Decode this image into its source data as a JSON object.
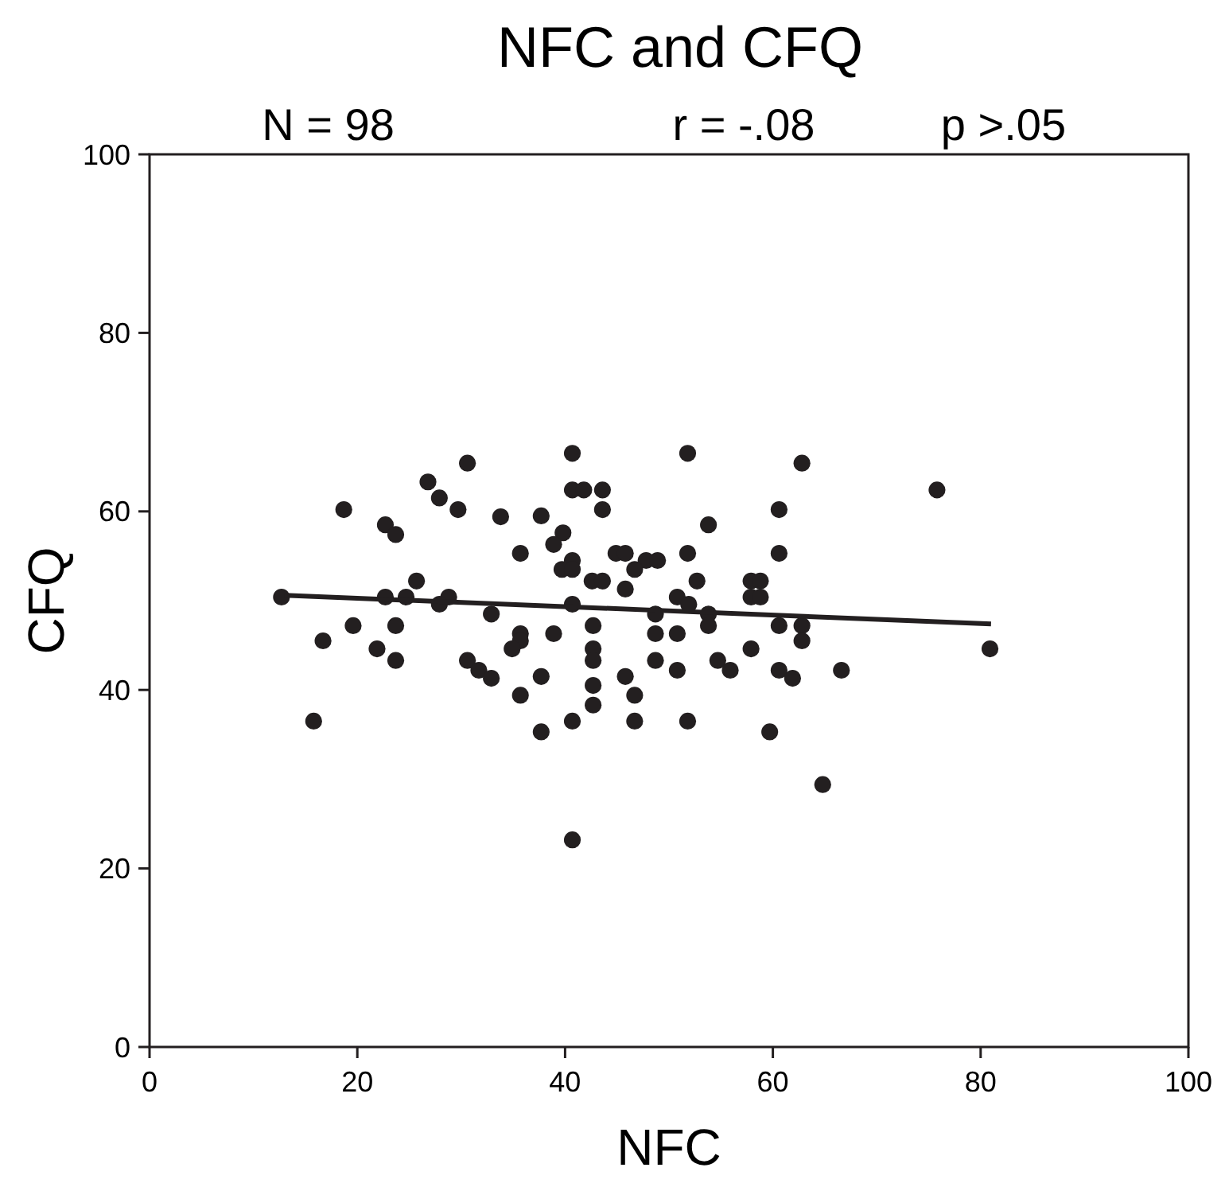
{
  "chart_data": {
    "type": "scatter",
    "title": "NFC and CFQ",
    "xlabel": "NFC",
    "ylabel": "CFQ",
    "annotations": [
      "N = 98",
      "r = -.08",
      "p >.05"
    ],
    "xlim": [
      0,
      100
    ],
    "xticks": [
      0,
      20,
      40,
      60,
      80,
      100
    ],
    "ylim": [
      0,
      100
    ],
    "yticks": [
      0,
      20,
      40,
      60,
      80,
      100
    ],
    "grid": false,
    "marker": "circle",
    "series": [
      {
        "color": "#231f20",
        "x": [
          30.6,
          26.8,
          27.9,
          18.7,
          29.7,
          33.8,
          22.7,
          23.7,
          25.7,
          12.7,
          22.7,
          24.7,
          28.8,
          27.9,
          32.9,
          19.6,
          23.7,
          16.7,
          21.9,
          23.7,
          30.6,
          31.7,
          32.9,
          15.8,
          40.7,
          51.8,
          40.7,
          41.8,
          43.6,
          43.6,
          37.7,
          39.8,
          38.9,
          35.7,
          44.9,
          45.8,
          51.8,
          53.8,
          40.7,
          39.7,
          40.7,
          47.8,
          48.9,
          46.7,
          42.6,
          43.6,
          45.8,
          52.7,
          50.8,
          51.9,
          57.9,
          58.8,
          57.9,
          58.8,
          40.7,
          48.7,
          53.8,
          53.8,
          42.7,
          35.7,
          35.7,
          34.9,
          38.9,
          48.7,
          50.8,
          42.7,
          42.7,
          48.7,
          50.8,
          54.7,
          55.9,
          57.9,
          37.7,
          45.8,
          35.7,
          42.7,
          42.7,
          46.7,
          40.7,
          46.7,
          51.8,
          37.7,
          59.7,
          40.7,
          62.8,
          75.8,
          60.6,
          60.6,
          60.6,
          62.8,
          62.8,
          80.9,
          60.6,
          61.9,
          66.6,
          64.8
        ],
        "values": [
          65.4,
          63.3,
          61.5,
          60.2,
          60.2,
          59.4,
          58.5,
          57.4,
          52.2,
          50.4,
          50.4,
          50.4,
          50.4,
          49.6,
          48.5,
          47.2,
          47.2,
          45.5,
          44.6,
          43.3,
          43.3,
          42.2,
          41.3,
          36.5,
          66.5,
          66.5,
          62.4,
          62.4,
          62.4,
          60.2,
          59.5,
          57.6,
          56.3,
          55.3,
          55.3,
          55.3,
          55.3,
          58.5,
          54.5,
          53.5,
          53.5,
          54.5,
          54.5,
          53.5,
          52.2,
          52.2,
          51.3,
          52.2,
          50.4,
          49.6,
          52.2,
          52.2,
          50.4,
          50.4,
          49.6,
          48.5,
          48.5,
          47.2,
          47.2,
          46.3,
          45.5,
          44.6,
          46.3,
          46.3,
          46.3,
          44.6,
          43.3,
          43.3,
          42.2,
          43.3,
          42.2,
          44.6,
          41.5,
          41.5,
          39.4,
          40.5,
          38.3,
          39.4,
          36.5,
          36.5,
          36.5,
          35.3,
          35.3,
          23.2,
          65.4,
          62.4,
          60.2,
          55.3,
          47.2,
          47.2,
          45.5,
          44.6,
          42.2,
          41.3,
          42.2,
          29.4
        ]
      },
      {
        "type": "line",
        "color": "#231f20",
        "x": [
          13,
          81
        ],
        "values": [
          50.6,
          47.4
        ],
        "marker": "none",
        "line_style": "solid"
      }
    ]
  }
}
